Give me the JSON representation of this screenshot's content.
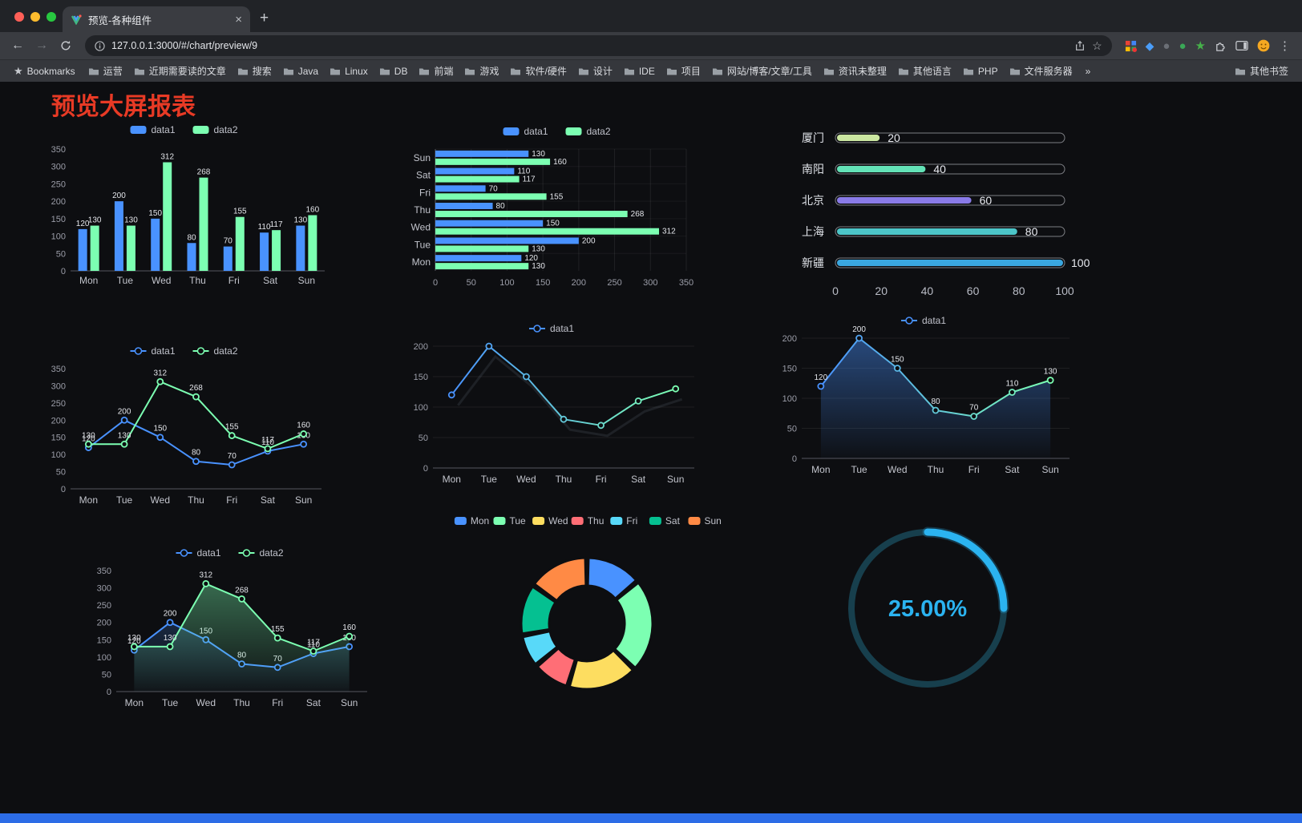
{
  "browser": {
    "traffic_lights": [
      "#ff5f57",
      "#febc2e",
      "#28c840"
    ],
    "tab": {
      "title": "预览-各种组件",
      "close": "×",
      "new_tab": "+"
    },
    "nav": {
      "url": "127.0.0.1:3000/#/chart/preview/9"
    },
    "bookmarks": {
      "label": "Bookmarks",
      "items": [
        "运营",
        "近期需要读的文章",
        "搜索",
        "Java",
        "Linux",
        "DB",
        "前端",
        "游戏",
        "软件/硬件",
        "设计",
        "IDE",
        "项目",
        "网站/博客/文章/工具",
        "资讯未整理",
        "其他语言",
        "PHP",
        "文件服务器"
      ],
      "overflow": "»",
      "other": "其他书签"
    }
  },
  "page": {
    "title": "预览大屏报表",
    "title_color": "#e83a25",
    "background": "#0d0e11",
    "footer_color": "#2c6ce6"
  },
  "palette": {
    "blue": "#4992ff",
    "green": "#7cffb2",
    "yellow": "#fddd60",
    "red": "#ff6e76",
    "lightblue": "#58d9f9",
    "teal": "#05c091",
    "orange": "#ff8a45"
  },
  "chart_data": [
    {
      "type": "bar",
      "title": "",
      "legend_position": "top",
      "categories": [
        "Mon",
        "Tue",
        "Wed",
        "Thu",
        "Fri",
        "Sat",
        "Sun"
      ],
      "series": [
        {
          "name": "data1",
          "color": "#4992ff",
          "values": [
            120,
            200,
            150,
            80,
            70,
            110,
            130
          ],
          "labels": true
        },
        {
          "name": "data2",
          "color": "#7cffb2",
          "values": [
            130,
            130,
            312,
            268,
            155,
            117,
            160
          ],
          "labels": true
        }
      ],
      "ylim": [
        0,
        350
      ],
      "ytick": 50,
      "grid": false
    },
    {
      "type": "bar",
      "orientation": "horizontal",
      "legend_position": "top",
      "categories": [
        "Mon",
        "Tue",
        "Wed",
        "Thu",
        "Fri",
        "Sat",
        "Sun"
      ],
      "series": [
        {
          "name": "data1",
          "color": "#4992ff",
          "values": [
            120,
            200,
            150,
            80,
            70,
            110,
            130
          ],
          "labels": true
        },
        {
          "name": "data2",
          "color": "#7cffb2",
          "values": [
            130,
            130,
            312,
            268,
            155,
            117,
            160
          ],
          "labels": true
        }
      ],
      "xlim": [
        0,
        350
      ],
      "xtick": 50,
      "grid": true
    },
    {
      "type": "bar",
      "variant": "progress",
      "xlim": [
        0,
        100
      ],
      "xticks": [
        0,
        20,
        40,
        60,
        80,
        100
      ],
      "items": [
        {
          "label": "厦门",
          "value": 20,
          "color": "#cbe7a1"
        },
        {
          "label": "南阳",
          "value": 40,
          "color": "#63e2b7"
        },
        {
          "label": "北京",
          "value": 60,
          "color": "#8a7be8"
        },
        {
          "label": "上海",
          "value": 80,
          "color": "#4cc5c8"
        },
        {
          "label": "新疆",
          "value": 100,
          "color": "#3aa7e0"
        }
      ]
    },
    {
      "type": "line",
      "legend_position": "top",
      "categories": [
        "Mon",
        "Tue",
        "Wed",
        "Thu",
        "Fri",
        "Sat",
        "Sun"
      ],
      "series": [
        {
          "name": "data1",
          "color": "#4992ff",
          "values": [
            120,
            200,
            150,
            80,
            70,
            110,
            130
          ],
          "labels": true
        },
        {
          "name": "data2",
          "color": "#7cffb2",
          "values": [
            130,
            130,
            312,
            268,
            155,
            117,
            160
          ],
          "labels": true
        }
      ],
      "ylim": [
        0,
        350
      ],
      "ytick": 50,
      "grid": false
    },
    {
      "type": "line",
      "legend_position": "top",
      "shadow": true,
      "categories": [
        "Mon",
        "Tue",
        "Wed",
        "Thu",
        "Fri",
        "Sat",
        "Sun"
      ],
      "series": [
        {
          "name": "data1",
          "gradient": [
            "#4992ff",
            "#7cffb2"
          ],
          "values": [
            120,
            200,
            150,
            80,
            70,
            110,
            130
          ],
          "labels": false
        }
      ],
      "ylim": [
        0,
        200
      ],
      "ytick": 50,
      "grid": true
    },
    {
      "type": "line",
      "legend_position": "top",
      "categories": [
        "Mon",
        "Tue",
        "Wed",
        "Thu",
        "Fri",
        "Sat",
        "Sun"
      ],
      "series": [
        {
          "name": "data1",
          "gradient": [
            "#4992ff",
            "#7cffb2"
          ],
          "values": [
            120,
            200,
            150,
            80,
            70,
            110,
            130
          ],
          "labels": true,
          "area": "#4992ff",
          "area_opacity": 0.45
        }
      ],
      "ylim": [
        0,
        200
      ],
      "ytick": 50,
      "grid": true
    },
    {
      "type": "line",
      "legend_position": "top",
      "categories": [
        "Mon",
        "Tue",
        "Wed",
        "Thu",
        "Fri",
        "Sat",
        "Sun"
      ],
      "series": [
        {
          "name": "data1",
          "color": "#4992ff",
          "values": [
            120,
            200,
            150,
            80,
            70,
            110,
            130
          ],
          "labels": true,
          "area": "#4992ff",
          "area_opacity": 0.2
        },
        {
          "name": "data2",
          "color": "#7cffb2",
          "values": [
            130,
            130,
            312,
            268,
            155,
            117,
            160
          ],
          "labels": true,
          "area": "#7cffb2",
          "area_opacity": 0.38
        }
      ],
      "ylim": [
        0,
        350
      ],
      "ytick": 50,
      "grid": false
    },
    {
      "type": "pie",
      "variant": "donut",
      "legend_position": "top",
      "items": [
        {
          "label": "Mon",
          "value": 120,
          "color": "#4992ff"
        },
        {
          "label": "Tue",
          "value": 200,
          "color": "#7cffb2"
        },
        {
          "label": "Wed",
          "value": 150,
          "color": "#fddd60"
        },
        {
          "label": "Thu",
          "value": 80,
          "color": "#ff6e76"
        },
        {
          "label": "Fri",
          "value": 70,
          "color": "#58d9f9"
        },
        {
          "label": "Sat",
          "value": 110,
          "color": "#05c091"
        },
        {
          "label": "Sun",
          "value": 130,
          "color": "#ff8a45"
        }
      ]
    },
    {
      "type": "gauge",
      "value": 25,
      "label": "25.00%",
      "color": "#2bb3f0",
      "track_color": "#173f4d"
    }
  ]
}
